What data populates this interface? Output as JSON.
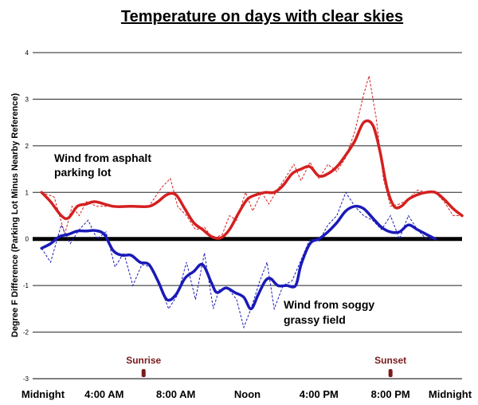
{
  "chart_data": {
    "type": "line",
    "title": "Temperature on days with clear skies",
    "ylabel": "Degree F Difference (Parking Lot Minus Nearby Reference)",
    "xlabel": "",
    "xlim": [
      0,
      24
    ],
    "ylim": [
      -3,
      4
    ],
    "y_ticks": [
      "-3",
      "-2",
      "-1",
      "0",
      "1",
      "2",
      "3",
      "4"
    ],
    "x_ticks": [
      {
        "hour": 0,
        "label": "Midnight"
      },
      {
        "hour": 4,
        "label": "4:00 AM"
      },
      {
        "hour": 8,
        "label": "8:00 AM"
      },
      {
        "hour": 12,
        "label": "Noon"
      },
      {
        "hour": 16,
        "label": "4:00 PM"
      },
      {
        "hour": 20,
        "label": "8:00 PM"
      },
      {
        "hour": 24,
        "label": "Midnight"
      }
    ],
    "markers": [
      {
        "hour": 6.2,
        "label": "Sunrise"
      },
      {
        "hour": 20.0,
        "label": "Sunset"
      }
    ],
    "series": [
      {
        "name": "Wind from asphalt parking lot",
        "label_lines": [
          "Wind from asphalt",
          "parking lot"
        ],
        "color": "#d42020",
        "smooth": [
          [
            0.5,
            1.0
          ],
          [
            1.0,
            0.8
          ],
          [
            1.6,
            0.5
          ],
          [
            2.0,
            0.45
          ],
          [
            2.5,
            0.7
          ],
          [
            3.0,
            0.75
          ],
          [
            3.5,
            0.8
          ],
          [
            4.5,
            0.7
          ],
          [
            5.5,
            0.7
          ],
          [
            6.5,
            0.7
          ],
          [
            7.0,
            0.8
          ],
          [
            7.5,
            0.95
          ],
          [
            8.0,
            0.95
          ],
          [
            8.5,
            0.65
          ],
          [
            9.0,
            0.35
          ],
          [
            9.5,
            0.2
          ],
          [
            10.0,
            0.05
          ],
          [
            10.5,
            0.02
          ],
          [
            11.0,
            0.2
          ],
          [
            11.5,
            0.55
          ],
          [
            12.0,
            0.85
          ],
          [
            12.5,
            0.95
          ],
          [
            13.0,
            1.0
          ],
          [
            13.5,
            1.0
          ],
          [
            14.0,
            1.15
          ],
          [
            14.5,
            1.4
          ],
          [
            15.0,
            1.5
          ],
          [
            15.5,
            1.55
          ],
          [
            16.0,
            1.35
          ],
          [
            16.5,
            1.4
          ],
          [
            17.0,
            1.55
          ],
          [
            17.5,
            1.8
          ],
          [
            18.0,
            2.1
          ],
          [
            18.5,
            2.5
          ],
          [
            19.0,
            2.45
          ],
          [
            19.4,
            1.9
          ],
          [
            19.8,
            1.1
          ],
          [
            20.2,
            0.7
          ],
          [
            20.6,
            0.7
          ],
          [
            21.0,
            0.85
          ],
          [
            21.5,
            0.95
          ],
          [
            22.0,
            1.0
          ],
          [
            22.5,
            1.0
          ],
          [
            23.0,
            0.85
          ],
          [
            23.5,
            0.65
          ],
          [
            24.0,
            0.5
          ]
        ],
        "raw": [
          [
            0.5,
            1.0
          ],
          [
            1.2,
            0.9
          ],
          [
            1.8,
            0.1
          ],
          [
            2.2,
            0.7
          ],
          [
            2.6,
            0.5
          ],
          [
            3.0,
            0.8
          ],
          [
            3.6,
            0.7
          ],
          [
            4.5,
            0.7
          ],
          [
            5.5,
            0.7
          ],
          [
            6.5,
            0.7
          ],
          [
            7.2,
            1.1
          ],
          [
            7.7,
            1.3
          ],
          [
            8.1,
            0.7
          ],
          [
            8.6,
            0.5
          ],
          [
            9.1,
            0.2
          ],
          [
            9.6,
            0.25
          ],
          [
            10.1,
            0.0
          ],
          [
            10.6,
            0.1
          ],
          [
            11.0,
            0.5
          ],
          [
            11.4,
            0.4
          ],
          [
            11.9,
            1.0
          ],
          [
            12.3,
            0.6
          ],
          [
            12.8,
            1.0
          ],
          [
            13.2,
            0.75
          ],
          [
            13.6,
            1.0
          ],
          [
            14.1,
            1.3
          ],
          [
            14.6,
            1.6
          ],
          [
            15.0,
            1.25
          ],
          [
            15.5,
            1.65
          ],
          [
            16.0,
            1.3
          ],
          [
            16.5,
            1.6
          ],
          [
            17.0,
            1.45
          ],
          [
            17.5,
            1.75
          ],
          [
            18.0,
            2.3
          ],
          [
            18.5,
            3.1
          ],
          [
            18.8,
            3.5
          ],
          [
            19.2,
            2.6
          ],
          [
            19.6,
            1.3
          ],
          [
            20.0,
            0.7
          ],
          [
            20.5,
            0.75
          ],
          [
            21.0,
            0.85
          ],
          [
            21.5,
            1.05
          ],
          [
            22.0,
            1.0
          ],
          [
            22.5,
            1.0
          ],
          [
            23.0,
            0.8
          ],
          [
            23.5,
            0.5
          ],
          [
            24.0,
            0.5
          ]
        ]
      },
      {
        "name": "Wind from soggy grassy field",
        "label_lines": [
          "Wind from soggy",
          "grassy field"
        ],
        "color": "#1a1ab8",
        "smooth": [
          [
            0.5,
            -0.2
          ],
          [
            1.0,
            -0.1
          ],
          [
            1.5,
            0.05
          ],
          [
            2.0,
            0.1
          ],
          [
            2.5,
            0.17
          ],
          [
            3.0,
            0.17
          ],
          [
            3.5,
            0.18
          ],
          [
            4.0,
            0.1
          ],
          [
            4.5,
            -0.25
          ],
          [
            5.0,
            -0.35
          ],
          [
            5.5,
            -0.35
          ],
          [
            6.0,
            -0.5
          ],
          [
            6.5,
            -0.55
          ],
          [
            7.0,
            -0.9
          ],
          [
            7.5,
            -1.3
          ],
          [
            8.0,
            -1.2
          ],
          [
            8.5,
            -0.85
          ],
          [
            9.0,
            -0.7
          ],
          [
            9.5,
            -0.55
          ],
          [
            10.0,
            -0.95
          ],
          [
            10.3,
            -1.15
          ],
          [
            10.8,
            -1.05
          ],
          [
            11.3,
            -1.15
          ],
          [
            11.8,
            -1.25
          ],
          [
            12.2,
            -1.5
          ],
          [
            12.6,
            -1.2
          ],
          [
            13.0,
            -0.9
          ],
          [
            13.3,
            -0.85
          ],
          [
            13.7,
            -1.0
          ],
          [
            14.2,
            -1.0
          ],
          [
            14.7,
            -1.0
          ],
          [
            15.0,
            -0.55
          ],
          [
            15.5,
            -0.1
          ],
          [
            16.0,
            0.0
          ],
          [
            16.5,
            0.15
          ],
          [
            17.0,
            0.35
          ],
          [
            17.5,
            0.6
          ],
          [
            18.0,
            0.7
          ],
          [
            18.5,
            0.65
          ],
          [
            19.0,
            0.45
          ],
          [
            19.5,
            0.25
          ],
          [
            20.0,
            0.15
          ],
          [
            20.5,
            0.15
          ],
          [
            21.0,
            0.3
          ],
          [
            21.5,
            0.2
          ],
          [
            22.0,
            0.1
          ],
          [
            22.5,
            0.0
          ]
        ],
        "raw": [
          [
            0.5,
            -0.2
          ],
          [
            1.0,
            -0.5
          ],
          [
            1.6,
            0.3
          ],
          [
            2.1,
            -0.1
          ],
          [
            2.6,
            0.2
          ],
          [
            3.1,
            0.4
          ],
          [
            3.6,
            0.0
          ],
          [
            4.1,
            0.15
          ],
          [
            4.6,
            -0.6
          ],
          [
            5.1,
            -0.3
          ],
          [
            5.6,
            -1.0
          ],
          [
            6.1,
            -0.55
          ],
          [
            6.6,
            -0.6
          ],
          [
            7.1,
            -1.0
          ],
          [
            7.6,
            -1.5
          ],
          [
            8.1,
            -1.2
          ],
          [
            8.6,
            -0.5
          ],
          [
            9.1,
            -1.3
          ],
          [
            9.6,
            -0.3
          ],
          [
            10.1,
            -1.5
          ],
          [
            10.4,
            -1.1
          ],
          [
            10.9,
            -1.05
          ],
          [
            11.4,
            -1.3
          ],
          [
            11.8,
            -1.9
          ],
          [
            12.2,
            -1.5
          ],
          [
            12.7,
            -0.9
          ],
          [
            13.1,
            -0.5
          ],
          [
            13.5,
            -1.5
          ],
          [
            14.0,
            -1.0
          ],
          [
            14.5,
            -0.9
          ],
          [
            15.0,
            -0.45
          ],
          [
            15.5,
            0.0
          ],
          [
            16.0,
            -0.05
          ],
          [
            16.5,
            0.3
          ],
          [
            17.0,
            0.5
          ],
          [
            17.5,
            1.0
          ],
          [
            18.0,
            0.7
          ],
          [
            18.5,
            0.5
          ],
          [
            19.0,
            0.4
          ],
          [
            19.5,
            0.2
          ],
          [
            20.0,
            0.5
          ],
          [
            20.5,
            0.0
          ],
          [
            21.0,
            0.5
          ],
          [
            21.5,
            0.2
          ],
          [
            22.0,
            0.0
          ],
          [
            22.5,
            0.0
          ]
        ]
      }
    ]
  }
}
